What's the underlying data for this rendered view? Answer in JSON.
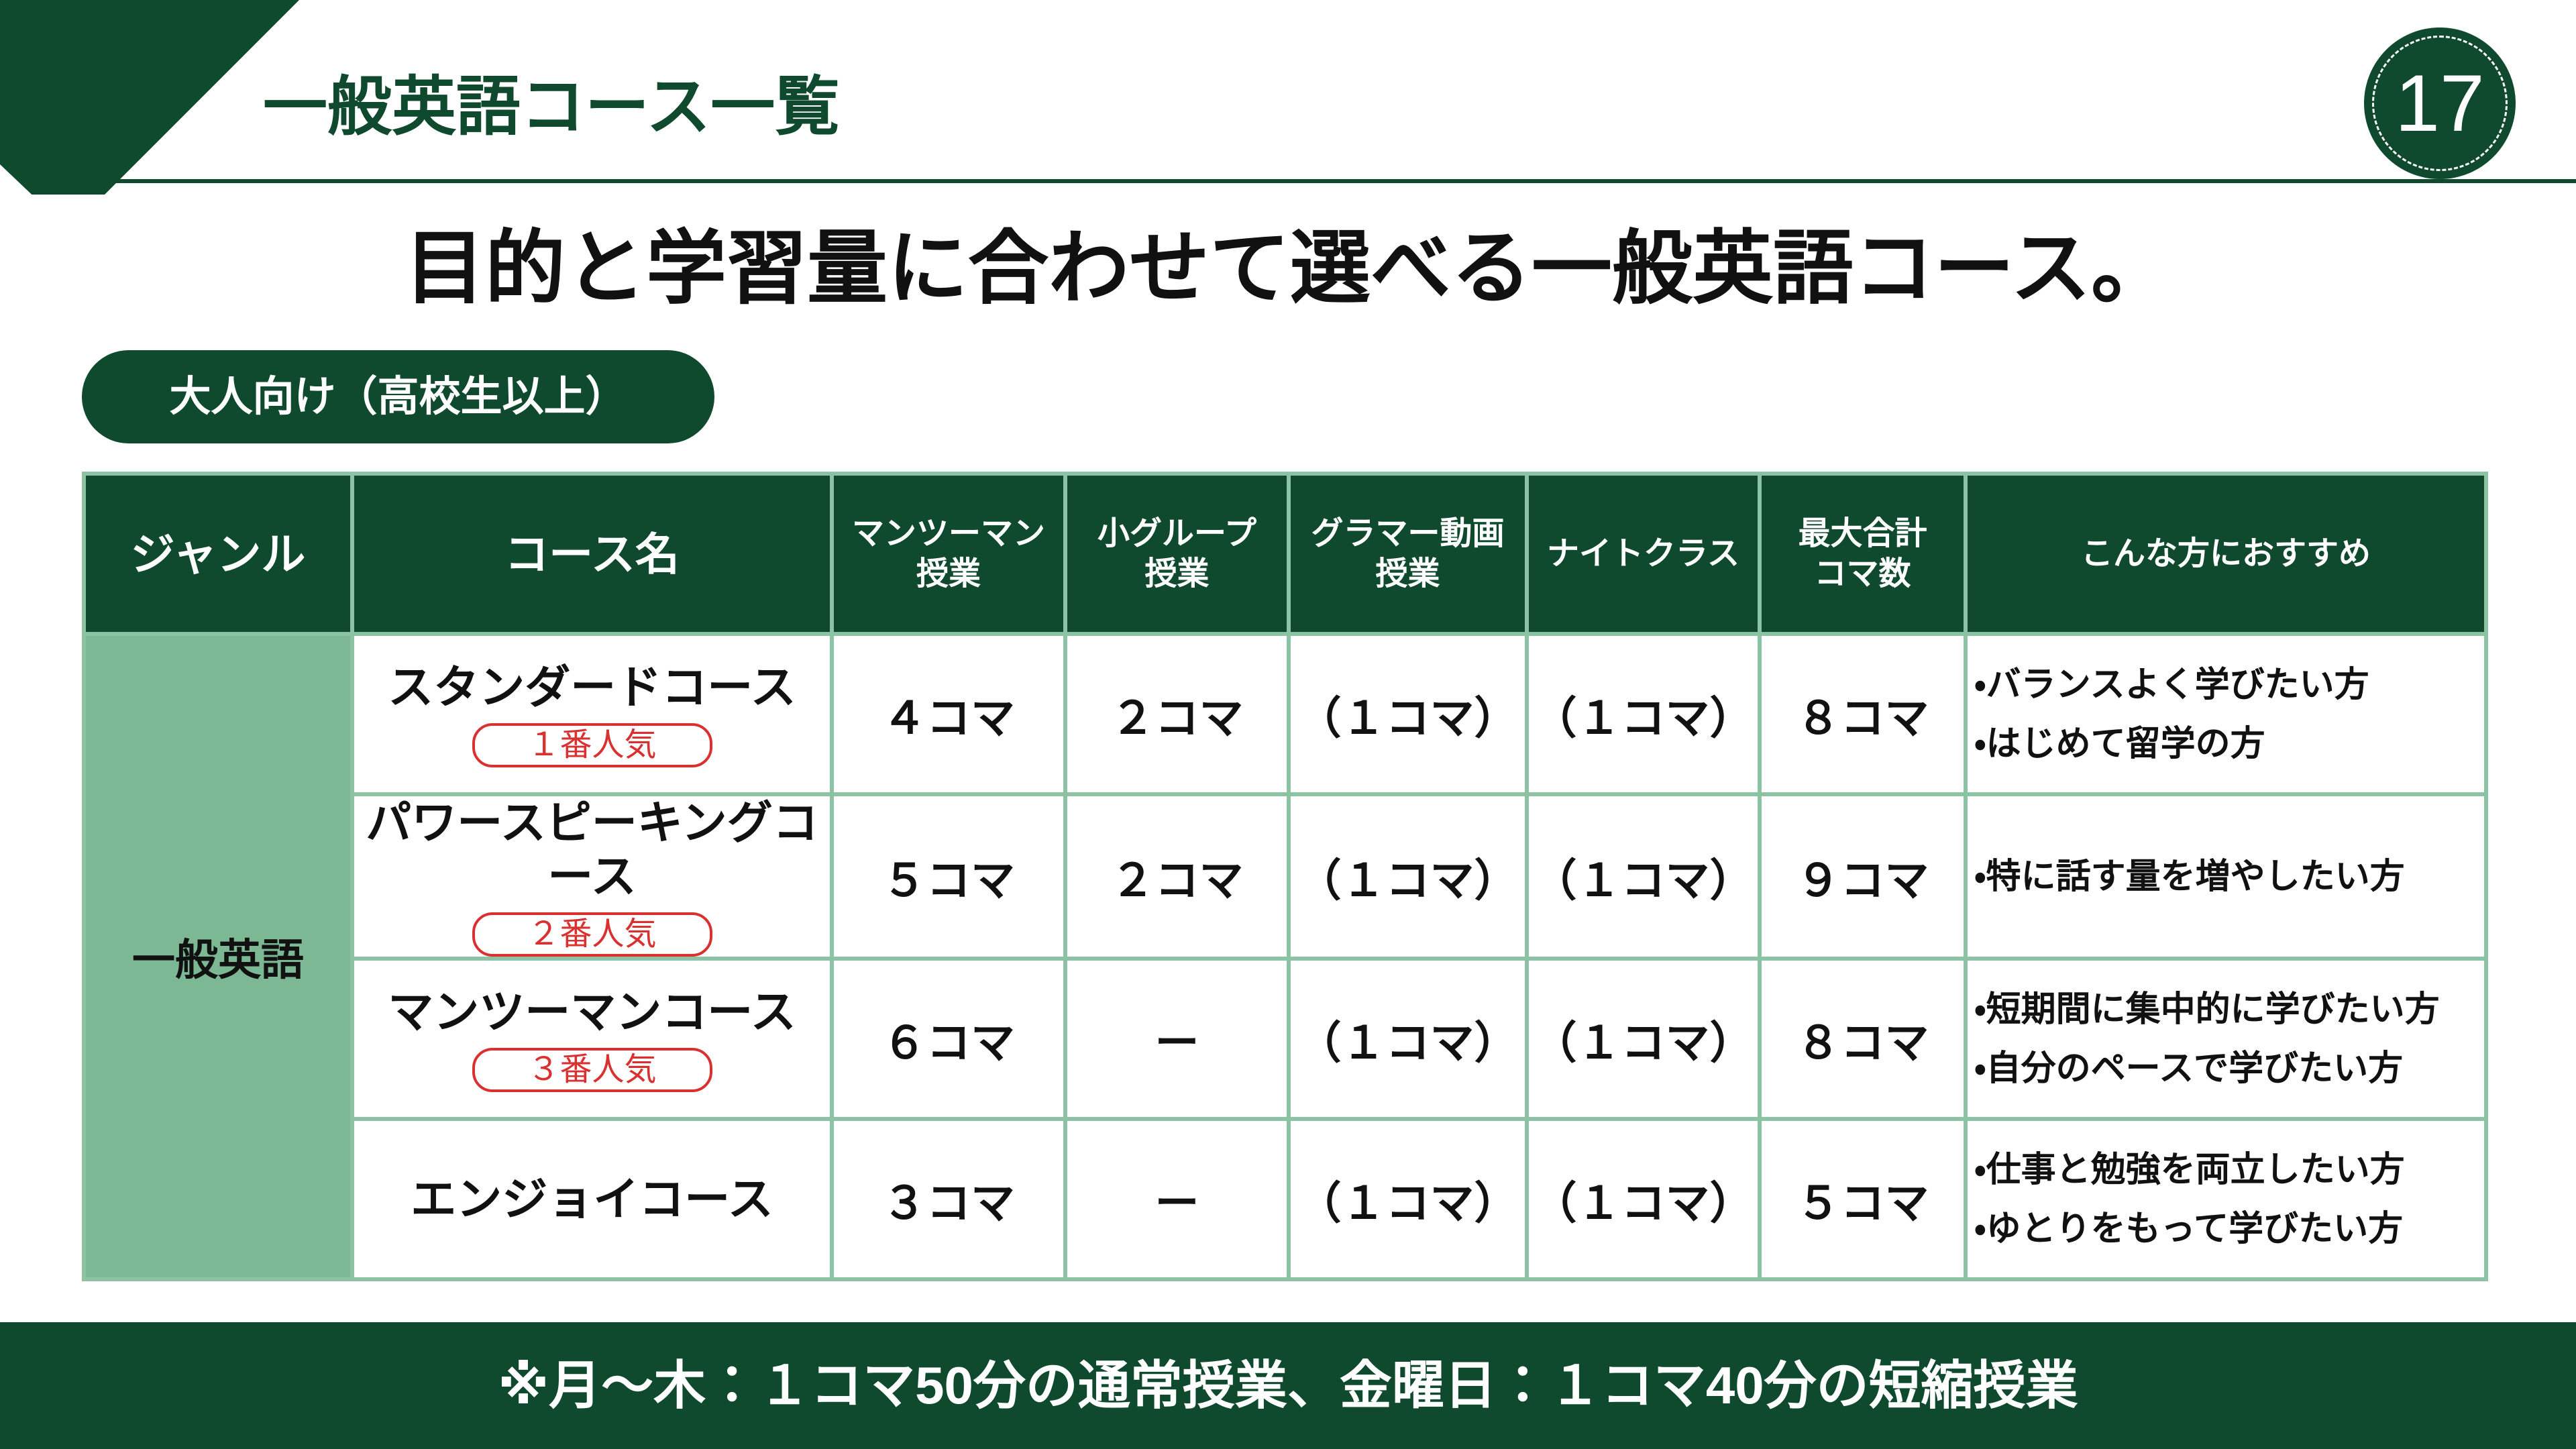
{
  "header": {
    "title": "一般英語コース一覧",
    "page_number": "17"
  },
  "headline": "目的と学習量に合わせて選べる一般英語コース。",
  "tag": "大人向け（高校生以上）",
  "table": {
    "columns": [
      [
        "ジャンル"
      ],
      [
        "コース名"
      ],
      [
        "マンツーマン",
        "授業"
      ],
      [
        "小グループ",
        "授業"
      ],
      [
        "グラマー動画",
        "授業"
      ],
      [
        "ナイトクラス"
      ],
      [
        "最大合計",
        "コマ数"
      ],
      [
        "こんな方におすすめ"
      ]
    ],
    "genre": "一般英語",
    "rows": [
      {
        "course": "スタンダードコース",
        "badge": "１番人気",
        "cells": [
          "４コマ",
          "２コマ",
          "（１コマ）",
          "（１コマ）",
          "８コマ"
        ],
        "recommend": [
          "・バランスよく学びたい方",
          "・はじめて留学の方"
        ]
      },
      {
        "course": "パワースピーキングコース",
        "badge": "２番人気",
        "cells": [
          "５コマ",
          "２コマ",
          "（１コマ）",
          "（１コマ）",
          "９コマ"
        ],
        "recommend": [
          "・特に話す量を増やしたい方"
        ]
      },
      {
        "course": "マンツーマンコース",
        "badge": "３番人気",
        "cells": [
          "６コマ",
          "ー",
          "（１コマ）",
          "（１コマ）",
          "８コマ"
        ],
        "recommend": [
          "・短期間に集中的に学びたい方",
          "・自分のペースで学びたい方"
        ]
      },
      {
        "course": "エンジョイコース",
        "cells": [
          "３コマ",
          "ー",
          "（１コマ）",
          "（１コマ）",
          "５コマ"
        ],
        "recommend": [
          "・仕事と勉強を両立したい方",
          "・ゆとりをもって学びたい方"
        ]
      }
    ]
  },
  "footer": "※月～木：１コマ50分の通常授業、金曜日：１コマ40分の短縮授業"
}
